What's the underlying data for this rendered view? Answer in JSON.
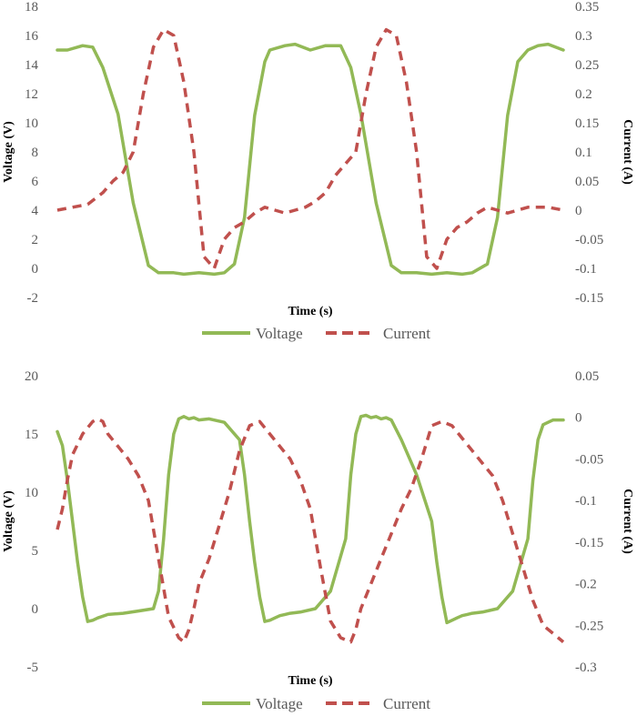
{
  "chart_data": [
    {
      "type": "line",
      "xlabel": "Time (s)",
      "ylabel": "Voltage (V)",
      "y2label": "Current (A)",
      "ylim": [
        -2,
        18
      ],
      "yticks": [
        "18",
        "16",
        "14",
        "12",
        "10",
        "8",
        "6",
        "4",
        "2",
        "0",
        "-2"
      ],
      "y2lim": [
        -0.15,
        0.35
      ],
      "y2ticks": [
        "0.35",
        "0.3",
        "0.25",
        "0.2",
        "0.15",
        "0.1",
        "0.05",
        "0",
        "-0.05",
        "-0.1",
        "-0.15"
      ],
      "grid": false,
      "legend_position": "bottom",
      "series": [
        {
          "name": "Voltage",
          "axis": "left",
          "color": "#92b956",
          "style": "solid",
          "x": [
            0,
            0.02,
            0.05,
            0.07,
            0.09,
            0.12,
            0.15,
            0.18,
            0.2,
            0.23,
            0.25,
            0.28,
            0.31,
            0.33,
            0.35,
            0.37,
            0.39,
            0.41,
            0.42,
            0.45,
            0.47,
            0.5,
            0.53,
            0.56,
            0.58,
            0.6,
            0.63,
            0.66,
            0.68,
            0.71,
            0.74,
            0.77,
            0.8,
            0.82,
            0.85,
            0.87,
            0.89,
            0.91,
            0.93,
            0.95,
            0.97,
            1.0
          ],
          "y": [
            15.0,
            15.0,
            15.3,
            15.2,
            13.8,
            10.6,
            4.5,
            0.2,
            -0.3,
            -0.3,
            -0.4,
            -0.3,
            -0.4,
            -0.3,
            0.3,
            3.5,
            10.5,
            14.2,
            15.0,
            15.3,
            15.4,
            15.0,
            15.3,
            15.3,
            13.8,
            10.6,
            4.5,
            0.2,
            -0.3,
            -0.3,
            -0.4,
            -0.3,
            -0.4,
            -0.3,
            0.3,
            3.5,
            10.5,
            14.2,
            15.0,
            15.3,
            15.4,
            15.0
          ]
        },
        {
          "name": "Current",
          "axis": "right",
          "color": "#c0504d",
          "style": "dashed",
          "x": [
            0,
            0.03,
            0.06,
            0.09,
            0.11,
            0.13,
            0.15,
            0.17,
            0.19,
            0.21,
            0.23,
            0.25,
            0.27,
            0.29,
            0.31,
            0.33,
            0.35,
            0.37,
            0.39,
            0.41,
            0.43,
            0.45,
            0.47,
            0.49,
            0.51,
            0.53,
            0.55,
            0.57,
            0.59,
            0.61,
            0.63,
            0.65,
            0.67,
            0.69,
            0.71,
            0.73,
            0.75,
            0.77,
            0.79,
            0.81,
            0.83,
            0.85,
            0.87,
            0.89,
            0.91,
            0.93,
            0.95,
            0.97,
            1.0
          ],
          "y": [
            0.0,
            0.005,
            0.01,
            0.03,
            0.05,
            0.065,
            0.1,
            0.2,
            0.28,
            0.31,
            0.3,
            0.22,
            0.1,
            -0.08,
            -0.1,
            -0.05,
            -0.03,
            -0.02,
            -0.005,
            0.005,
            0.0,
            -0.005,
            0.0,
            0.005,
            0.015,
            0.03,
            0.06,
            0.08,
            0.1,
            0.2,
            0.28,
            0.31,
            0.3,
            0.22,
            0.1,
            -0.08,
            -0.1,
            -0.05,
            -0.03,
            -0.02,
            -0.005,
            0.005,
            0.0,
            -0.005,
            0.0,
            0.005,
            0.005,
            0.005,
            0.0
          ]
        }
      ]
    },
    {
      "type": "line",
      "xlabel": "Time (s)",
      "ylabel": "Voltage (V)",
      "y2label": "Current (A)",
      "ylim": [
        -5,
        20
      ],
      "yticks": [
        "20",
        "15",
        "10",
        "5",
        "0",
        "-5"
      ],
      "y2lim": [
        -0.3,
        0.05
      ],
      "y2ticks": [
        "0.05",
        "0",
        "-0.05",
        "-0.1",
        "-0.15",
        "-0.2",
        "-0.25",
        "-0.3"
      ],
      "grid": false,
      "legend_position": "bottom",
      "series": [
        {
          "name": "Voltage",
          "axis": "left",
          "color": "#92b956",
          "style": "solid",
          "x": [
            0,
            0.01,
            0.02,
            0.03,
            0.04,
            0.05,
            0.06,
            0.07,
            0.08,
            0.1,
            0.13,
            0.16,
            0.19,
            0.2,
            0.21,
            0.22,
            0.23,
            0.24,
            0.25,
            0.26,
            0.27,
            0.28,
            0.3,
            0.33,
            0.36,
            0.37,
            0.38,
            0.39,
            0.4,
            0.41,
            0.42,
            0.43,
            0.44,
            0.45,
            0.46,
            0.48,
            0.51,
            0.54,
            0.57,
            0.58,
            0.59,
            0.6,
            0.61,
            0.62,
            0.63,
            0.64,
            0.65,
            0.66,
            0.68,
            0.71,
            0.74,
            0.75,
            0.76,
            0.77,
            0.78,
            0.79,
            0.8,
            0.81,
            0.82,
            0.84,
            0.87,
            0.9,
            0.93,
            0.94,
            0.95,
            0.96,
            0.97,
            0.98,
            0.99,
            1.0
          ],
          "y": [
            15.2,
            14.0,
            11.0,
            7.5,
            4.0,
            1.0,
            -1.1,
            -1.0,
            -0.8,
            -0.5,
            -0.4,
            -0.2,
            0.0,
            1.5,
            6.0,
            11.5,
            15.0,
            16.3,
            16.5,
            16.3,
            16.4,
            16.2,
            16.3,
            16.0,
            14.5,
            11.5,
            7.5,
            4.0,
            1.0,
            -1.1,
            -1.0,
            -0.8,
            -0.6,
            -0.5,
            -0.4,
            -0.3,
            0.0,
            1.5,
            6.0,
            11.5,
            15.0,
            16.5,
            16.6,
            16.4,
            16.5,
            16.3,
            16.4,
            16.2,
            14.5,
            11.5,
            7.5,
            4.0,
            1.0,
            -1.2,
            -1.0,
            -0.8,
            -0.6,
            -0.5,
            -0.4,
            -0.3,
            0.0,
            1.5,
            6.0,
            11.0,
            14.5,
            15.8,
            16.0,
            16.2,
            16.2,
            16.2
          ]
        },
        {
          "name": "Current",
          "axis": "right",
          "color": "#c0504d",
          "style": "dashed",
          "x": [
            0,
            0.01,
            0.02,
            0.03,
            0.05,
            0.07,
            0.08,
            0.09,
            0.1,
            0.12,
            0.14,
            0.16,
            0.18,
            0.2,
            0.22,
            0.24,
            0.25,
            0.26,
            0.27,
            0.28,
            0.3,
            0.32,
            0.34,
            0.36,
            0.38,
            0.4,
            0.42,
            0.44,
            0.46,
            0.48,
            0.5,
            0.52,
            0.54,
            0.56,
            0.58,
            0.59,
            0.6,
            0.62,
            0.64,
            0.66,
            0.68,
            0.7,
            0.72,
            0.74,
            0.76,
            0.78,
            0.8,
            0.82,
            0.84,
            0.86,
            0.88,
            0.9,
            0.92,
            0.94,
            0.96,
            0.98,
            1.0
          ],
          "y": [
            -0.135,
            -0.11,
            -0.075,
            -0.045,
            -0.02,
            -0.005,
            -0.002,
            -0.005,
            -0.02,
            -0.035,
            -0.05,
            -0.07,
            -0.1,
            -0.17,
            -0.24,
            -0.265,
            -0.27,
            -0.255,
            -0.23,
            -0.2,
            -0.17,
            -0.13,
            -0.09,
            -0.04,
            -0.01,
            -0.005,
            -0.02,
            -0.035,
            -0.05,
            -0.075,
            -0.11,
            -0.18,
            -0.245,
            -0.265,
            -0.27,
            -0.255,
            -0.23,
            -0.2,
            -0.17,
            -0.14,
            -0.11,
            -0.085,
            -0.05,
            -0.01,
            -0.005,
            -0.01,
            -0.025,
            -0.04,
            -0.055,
            -0.07,
            -0.1,
            -0.14,
            -0.18,
            -0.22,
            -0.25,
            -0.26,
            -0.27
          ]
        }
      ]
    }
  ]
}
